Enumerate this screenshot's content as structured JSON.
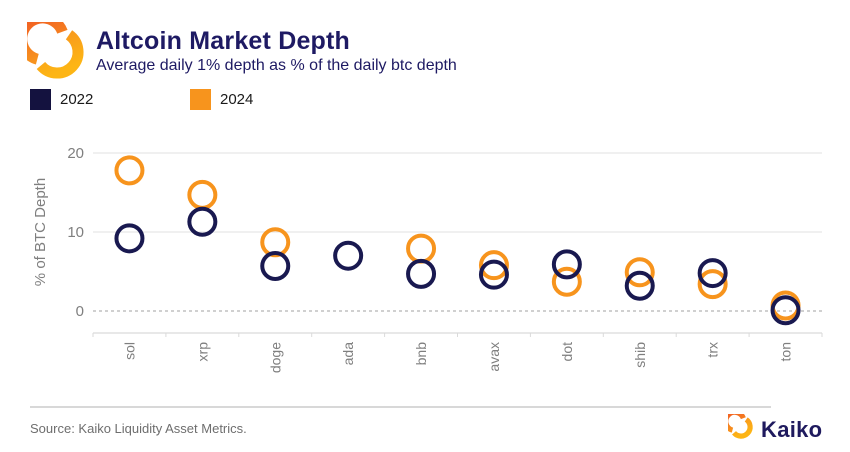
{
  "header": {
    "title": "Altcoin Market Depth",
    "subtitle": "Average daily 1% depth as % of the daily btc depth",
    "logo_icon": "kaiko-hexagon-icon"
  },
  "legend": {
    "items": [
      {
        "label": "2022",
        "color": "#14123f"
      },
      {
        "label": "2024",
        "color": "#f7941d"
      }
    ]
  },
  "chart_data": {
    "type": "scatter",
    "marker": "open-circle",
    "categories": [
      "sol",
      "xrp",
      "doge",
      "ada",
      "bnb",
      "avax",
      "dot",
      "shib",
      "trx",
      "ton"
    ],
    "series": [
      {
        "name": "2022",
        "color": "#191950",
        "values": [
          9.2,
          11.3,
          5.7,
          7.0,
          4.7,
          4.6,
          5.9,
          3.2,
          4.8,
          0.1
        ]
      },
      {
        "name": "2024",
        "color": "#f7941d",
        "values": [
          17.8,
          14.7,
          8.7,
          null,
          7.9,
          5.8,
          3.7,
          4.9,
          3.4,
          0.7
        ]
      }
    ],
    "title": "Altcoin Market Depth",
    "subtitle": "Average daily 1% depth as % of the daily btc depth",
    "xlabel": "",
    "ylabel": "% of BTC Depth",
    "yticks": [
      0,
      10,
      20
    ],
    "ylim": [
      -2.5,
      21.5
    ],
    "grid": "horizontal",
    "zero_line_style": "dashed",
    "legend_position": "top-left"
  },
  "footer": {
    "source": "Source: Kaiko Liquidity Asset Metrics.",
    "brand": "Kaiko",
    "brand_icon": "kaiko-hexagon-icon"
  },
  "colors": {
    "title_navy": "#1e1a63",
    "series_2022_navy": "#191950",
    "series_2024_orange": "#f7941d",
    "grid_line": "#e8e8e8",
    "zero_line": "#b3b3b3",
    "axis_line": "#dadada",
    "axis_text": "#7f7f7f",
    "source_text": "#6e6e6e",
    "logo_orange_dark": "#f15a24",
    "logo_orange": "#f7931e",
    "logo_orange_light": "#fdb515"
  }
}
